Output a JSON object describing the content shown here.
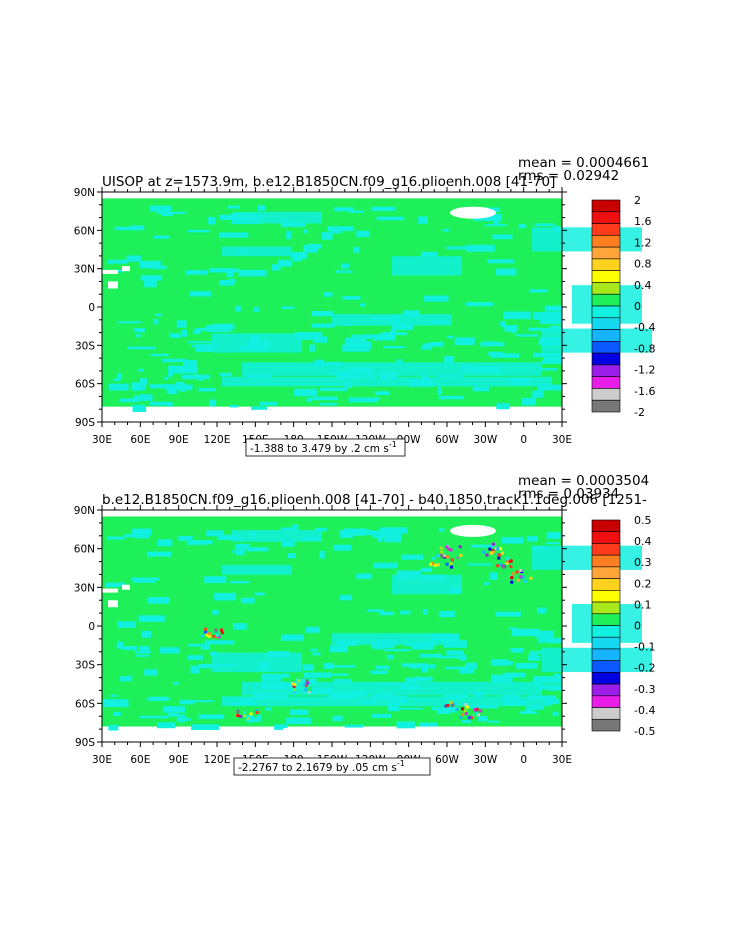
{
  "palette": {
    "ocean_green": "#1ef05a",
    "cyan": "#12f0e0",
    "land_white": "#ffffff",
    "frame": "#000000"
  },
  "chart_data": [
    {
      "type": "heatmap",
      "title": "UISOP at z=1573.9m, b.e12.B1850CN.f09_g16.plioenh.008 [41-70]",
      "stats": {
        "mean": "mean = 0.0004661",
        "rms": "rms = 0.02942"
      },
      "x_ticks": [
        "30E",
        "60E",
        "90E",
        "120E",
        "150E",
        "180",
        "150W",
        "120W",
        "90W",
        "60W",
        "30W",
        "0",
        "30E"
      ],
      "y_ticks": [
        "90N",
        "60N",
        "30N",
        "0",
        "30S",
        "60S",
        "90S"
      ],
      "colorbar": {
        "labels": [
          "2",
          "1.6",
          "1.2",
          "0.8",
          "0.4",
          "0",
          "-0.4",
          "-0.8",
          "-1.2",
          "-1.6",
          "-2"
        ],
        "colors": [
          "#c80000",
          "#ee1010",
          "#ff3a1a",
          "#ff7f20",
          "#ffa53a",
          "#ffd21e",
          "#ffff00",
          "#a8e81c",
          "#1ef05a",
          "#12f0e0",
          "#14d8f0",
          "#16b4ff",
          "#0a5aff",
          "#0000e0",
          "#9a1ee8",
          "#e81ee8",
          "#cccccc",
          "#777777"
        ]
      },
      "range_label": "-1.388 to 3.479 by .2 cm s",
      "range_unit_exp": "-1"
    },
    {
      "type": "heatmap",
      "title": "b.e12.B1850CN.f09_g16.plioenh.008 [41-70] - b40.1850.track1.1deg.006 [1251-",
      "stats": {
        "mean": "mean = 0.0003504",
        "rms": "rms = 0.03934"
      },
      "x_ticks": [
        "30E",
        "60E",
        "90E",
        "120E",
        "150E",
        "180",
        "150W",
        "120W",
        "90W",
        "60W",
        "30W",
        "0",
        "30E"
      ],
      "y_ticks": [
        "90N",
        "60N",
        "30N",
        "0",
        "30S",
        "60S",
        "90S"
      ],
      "colorbar": {
        "labels": [
          "0.5",
          "0.4",
          "0.3",
          "0.2",
          "0.1",
          "0",
          "-0.1",
          "-0.2",
          "-0.3",
          "-0.4",
          "-0.5"
        ],
        "colors": [
          "#c80000",
          "#ee1010",
          "#ff3a1a",
          "#ff7f20",
          "#ffa53a",
          "#ffd21e",
          "#ffff00",
          "#a8e81c",
          "#1ef05a",
          "#12f0e0",
          "#14d8f0",
          "#16b4ff",
          "#0a5aff",
          "#0000e0",
          "#9a1ee8",
          "#e81ee8",
          "#cccccc",
          "#777777"
        ]
      },
      "range_label": "-2.2767 to 2.1679 by .05 cm s",
      "range_unit_exp": "-1"
    }
  ]
}
